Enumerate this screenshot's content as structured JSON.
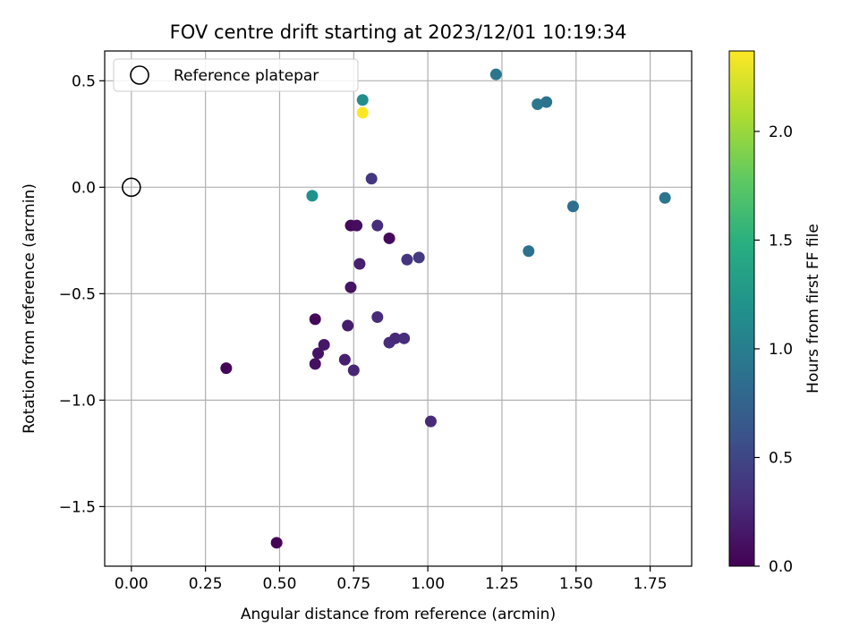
{
  "chart_data": {
    "type": "scatter",
    "title": "FOV centre drift starting at 2023/12/01 10:19:34",
    "xlabel": "Angular distance from reference (arcmin)",
    "ylabel": "Rotation from reference (arcmin)",
    "xlim": [
      -0.09,
      1.89
    ],
    "ylim": [
      -1.78,
      0.64
    ],
    "x_ticks": [
      0.0,
      0.25,
      0.5,
      0.75,
      1.0,
      1.25,
      1.5,
      1.75
    ],
    "x_tick_labels": [
      "0.00",
      "0.25",
      "0.50",
      "0.75",
      "1.00",
      "1.25",
      "1.50",
      "1.75"
    ],
    "y_ticks": [
      0.5,
      0.0,
      -0.5,
      -1.0,
      -1.5
    ],
    "y_tick_labels": [
      "0.5",
      "0.0",
      "−0.5",
      "−1.0",
      "−1.5"
    ],
    "grid": true,
    "legend": {
      "placement": "upper-left",
      "entries": [
        "Reference platepar"
      ]
    },
    "reference_point": {
      "x": 0.0,
      "y": 0.0,
      "label": "Reference platepar"
    },
    "colorbar": {
      "label": "Hours from first FF file",
      "colormap": "viridis",
      "range": [
        0.0,
        2.37
      ],
      "ticks": [
        0.0,
        0.5,
        1.0,
        1.5,
        2.0
      ],
      "tick_labels": [
        "0.0",
        "0.5",
        "1.0",
        "1.5",
        "2.0"
      ]
    },
    "points": [
      {
        "x": 0.49,
        "y": -1.67,
        "c": 0.02
      },
      {
        "x": 0.32,
        "y": -0.85,
        "c": 0.03
      },
      {
        "x": 0.62,
        "y": -0.62,
        "c": 0.05
      },
      {
        "x": 0.62,
        "y": -0.83,
        "c": 0.1
      },
      {
        "x": 0.63,
        "y": -0.78,
        "c": 0.12
      },
      {
        "x": 0.65,
        "y": -0.74,
        "c": 0.15
      },
      {
        "x": 0.73,
        "y": -0.65,
        "c": 0.18
      },
      {
        "x": 0.72,
        "y": -0.81,
        "c": 0.2
      },
      {
        "x": 0.75,
        "y": -0.86,
        "c": 0.25
      },
      {
        "x": 0.74,
        "y": -0.47,
        "c": 0.12
      },
      {
        "x": 0.74,
        "y": -0.18,
        "c": 0.05
      },
      {
        "x": 0.76,
        "y": -0.18,
        "c": 0.08
      },
      {
        "x": 0.77,
        "y": -0.36,
        "c": 0.2
      },
      {
        "x": 0.87,
        "y": -0.24,
        "c": 0.06
      },
      {
        "x": 0.83,
        "y": -0.18,
        "c": 0.3
      },
      {
        "x": 0.83,
        "y": -0.61,
        "c": 0.28
      },
      {
        "x": 0.87,
        "y": -0.73,
        "c": 0.3
      },
      {
        "x": 0.89,
        "y": -0.71,
        "c": 0.27
      },
      {
        "x": 0.92,
        "y": -0.71,
        "c": 0.3
      },
      {
        "x": 0.93,
        "y": -0.34,
        "c": 0.35
      },
      {
        "x": 0.97,
        "y": -0.33,
        "c": 0.4
      },
      {
        "x": 1.01,
        "y": -1.1,
        "c": 0.28
      },
      {
        "x": 0.81,
        "y": 0.04,
        "c": 0.38
      },
      {
        "x": 0.61,
        "y": -0.04,
        "c": 1.2
      },
      {
        "x": 0.78,
        "y": 0.41,
        "c": 1.15
      },
      {
        "x": 0.78,
        "y": 0.35,
        "c": 2.37
      },
      {
        "x": 1.23,
        "y": 0.53,
        "c": 0.92
      },
      {
        "x": 1.37,
        "y": 0.39,
        "c": 0.95
      },
      {
        "x": 1.4,
        "y": 0.4,
        "c": 0.9
      },
      {
        "x": 1.34,
        "y": -0.3,
        "c": 0.88
      },
      {
        "x": 1.49,
        "y": -0.09,
        "c": 0.85
      },
      {
        "x": 1.8,
        "y": -0.05,
        "c": 0.92
      }
    ]
  }
}
